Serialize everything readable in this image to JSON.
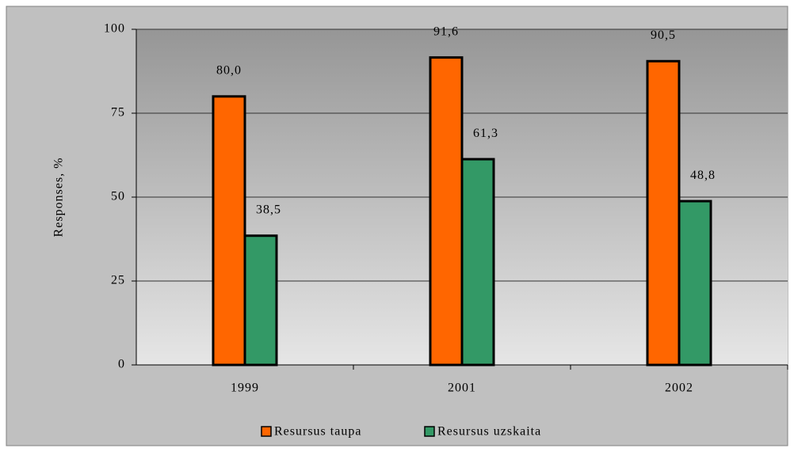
{
  "chart_data": {
    "type": "bar",
    "y_label": "Responses, %",
    "categories": [
      "1999",
      "2001",
      "2002"
    ],
    "series": [
      {
        "name": "Resursus taupa",
        "color": "#ff6600",
        "values": [
          80.0,
          91.6,
          90.5
        ],
        "value_labels": [
          "80,0",
          "91,6",
          "90,5"
        ]
      },
      {
        "name": "Resursus uzskaita",
        "color": "#339966",
        "values": [
          38.5,
          61.3,
          48.8
        ],
        "value_labels": [
          "38,5",
          "61,3",
          "48,8"
        ]
      }
    ],
    "ylim": [
      0,
      100
    ],
    "yticks": [
      0,
      25,
      50,
      75,
      100
    ],
    "grid": true,
    "legend": "bottom"
  }
}
